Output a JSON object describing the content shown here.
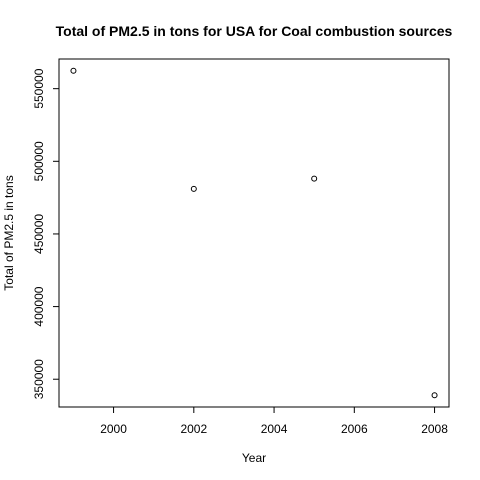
{
  "chart_data": {
    "type": "scatter",
    "title": "Total of PM2.5 in tons for USA for Coal combustion sources",
    "xlabel": "Year",
    "ylabel": "Total of PM2.5 in tons",
    "x": [
      1999,
      2002,
      2005,
      2008
    ],
    "y": [
      562300,
      481000,
      488100,
      339000
    ],
    "xticks": [
      2000,
      2002,
      2004,
      2006,
      2008
    ],
    "yticks": [
      350000,
      400000,
      450000,
      500000,
      550000
    ],
    "xtick_labels": [
      "2000",
      "2002",
      "2004",
      "2006",
      "2008"
    ],
    "ytick_labels": [
      "350000",
      "400000",
      "450000",
      "500000",
      "550000"
    ],
    "xlim": [
      1998.64,
      2008.36
    ],
    "ylim": [
      330880,
      570420
    ],
    "grid": false,
    "marker": "open-circle"
  }
}
